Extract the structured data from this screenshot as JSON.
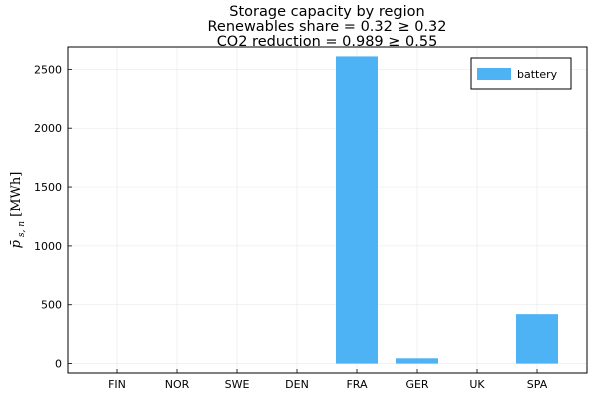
{
  "chart_data": {
    "type": "bar",
    "title_lines": [
      "Storage capacity by region",
      "Renewables share = 0.32 ≥ 0.32",
      "CO2 reduction = 0.989 ≥ 0.55"
    ],
    "xlabel": "",
    "ylabel": "p̄ s, n [MWh]",
    "categories": [
      "FIN",
      "NOR",
      "SWE",
      "DEN",
      "FRA",
      "GER",
      "UK",
      "SPA"
    ],
    "series": [
      {
        "name": "battery",
        "color": "#4db3f5",
        "values": [
          0,
          0,
          0,
          0,
          2610,
          45,
          0,
          420
        ]
      }
    ],
    "yticks": [
      0,
      500,
      1000,
      1500,
      2000,
      2500
    ],
    "ylim": [
      -80,
      2690
    ],
    "grid": true,
    "legend_position": "top-right"
  }
}
